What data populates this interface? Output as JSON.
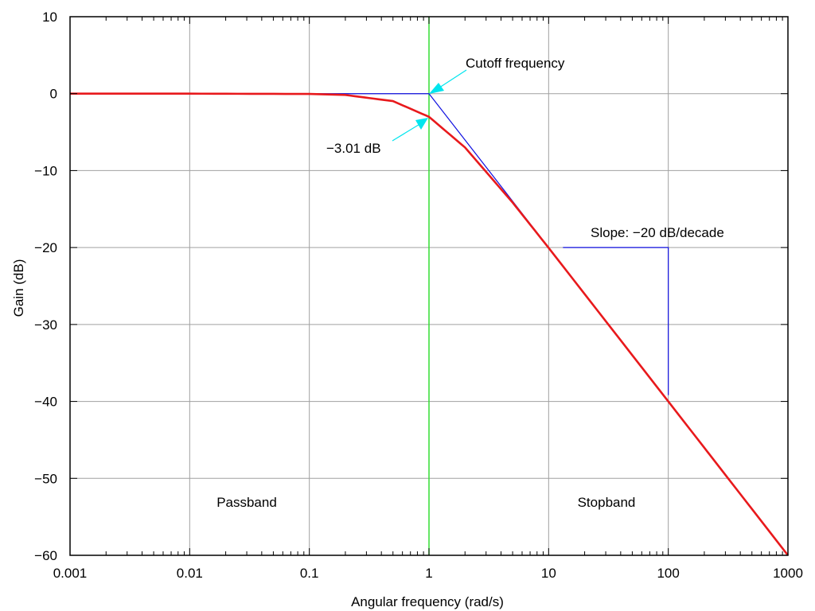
{
  "chart_data": {
    "type": "line",
    "x_scale": "log",
    "xlim": [
      0.001,
      1000
    ],
    "ylim": [
      -60,
      10
    ],
    "xlabel": "Angular frequency (rad/s)",
    "ylabel": "Gain (dB)",
    "grid": true,
    "xtick_labels": [
      "0.001",
      "0.01",
      "0.1",
      "1",
      "10",
      "100",
      "1000"
    ],
    "xtick_values": [
      0.001,
      0.01,
      0.1,
      1,
      10,
      100,
      1000
    ],
    "ytick_labels": [
      "10",
      "0",
      "−10",
      "−20",
      "−30",
      "−40",
      "−50",
      "−60"
    ],
    "ytick_values": [
      10,
      0,
      -10,
      -20,
      -30,
      -40,
      -50,
      -60
    ],
    "series": [
      {
        "role": "response",
        "color": "#e8191c",
        "x": [
          0.001,
          0.01,
          0.1,
          0.2,
          0.5,
          1,
          2,
          5,
          10,
          100,
          1000
        ],
        "y": [
          0,
          0,
          -0.04,
          -0.17,
          -0.97,
          -3.01,
          -6.99,
          -14.15,
          -20.04,
          -40,
          -60
        ]
      },
      {
        "role": "asymptote",
        "color": "#1010e0",
        "x": [
          0.001,
          1,
          1000
        ],
        "y": [
          0,
          0,
          -60
        ]
      }
    ],
    "cutoff_line": {
      "x": 1,
      "color": "#33dd33"
    },
    "slope_triangle": {
      "x": [
        10,
        100
      ],
      "y": [
        -20,
        -40
      ],
      "color": "#1010e0"
    },
    "annotations": [
      {
        "text": "Cutoff frequency",
        "target": [
          1,
          0
        ],
        "arrow_color": "#00e5ee"
      },
      {
        "text": "−3.01 dB",
        "target": [
          1,
          -3.01
        ],
        "arrow_color": "#00e5ee"
      },
      {
        "text": "Slope: −20 dB/decade"
      },
      {
        "text": "Passband"
      },
      {
        "text": "Stopband"
      }
    ]
  }
}
